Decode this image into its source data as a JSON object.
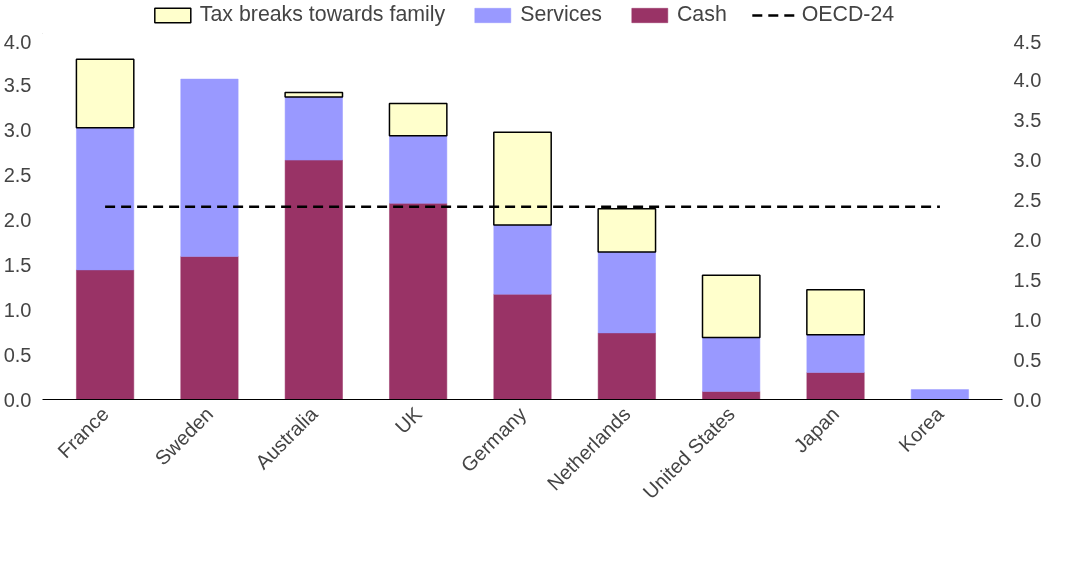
{
  "chart_data": {
    "type": "bar",
    "stacked": true,
    "categories": [
      "France",
      "Sweden",
      "Australia",
      "UK",
      "Germany",
      "Netherlands",
      "United States",
      "Japan",
      "Korea"
    ],
    "series": [
      {
        "name": "Cash",
        "color": "#993366",
        "values": [
          1.44,
          1.59,
          2.66,
          2.18,
          1.17,
          0.74,
          0.09,
          0.3,
          null
        ]
      },
      {
        "name": "Services",
        "color": "#9999ff",
        "values": [
          1.58,
          1.97,
          0.7,
          0.75,
          0.77,
          0.9,
          0.6,
          0.42,
          0.11
        ]
      },
      {
        "name": "Tax breaks towards family",
        "color": "#ffffcc",
        "values": [
          0.76,
          null,
          0.05,
          0.36,
          1.03,
          0.48,
          0.69,
          0.5,
          null
        ]
      },
      {
        "name": "OECD-24",
        "type": "line",
        "axis": "y2",
        "color": "#000000",
        "line_style": "dashed",
        "values": [
          2.41,
          2.41,
          2.41,
          2.41,
          2.41,
          2.41,
          2.41,
          2.41,
          2.41
        ]
      }
    ],
    "ylim": [
      0,
      4
    ],
    "yticks": [
      {
        "value": 0,
        "label": "0.0"
      },
      {
        "value": 0.5,
        "label": "0.5"
      },
      {
        "value": 1,
        "label": "1.0"
      },
      {
        "value": 1.5,
        "label": "1.5"
      },
      {
        "value": 2,
        "label": "2.0"
      },
      {
        "value": 2.5,
        "label": "2.5"
      },
      {
        "value": 3,
        "label": "3.0"
      },
      {
        "value": 3.5,
        "label": "3.5"
      },
      {
        "value": 4,
        "label": "4.0"
      }
    ],
    "y2lim": [
      0,
      4.5
    ],
    "y2ticks": [
      {
        "value": 0,
        "label": "0.0"
      },
      {
        "value": 0.5,
        "label": "0.5"
      },
      {
        "value": 1,
        "label": "1.0"
      },
      {
        "value": 1.5,
        "label": "1.5"
      },
      {
        "value": 2,
        "label": "2.0"
      },
      {
        "value": 2.5,
        "label": "2.5"
      },
      {
        "value": 3,
        "label": "3.0"
      },
      {
        "value": 3.5,
        "label": "3.5"
      },
      {
        "value": 4,
        "label": "4.0"
      },
      {
        "value": 4.5,
        "label": "4.5"
      }
    ],
    "legend": "top",
    "grid": false
  }
}
